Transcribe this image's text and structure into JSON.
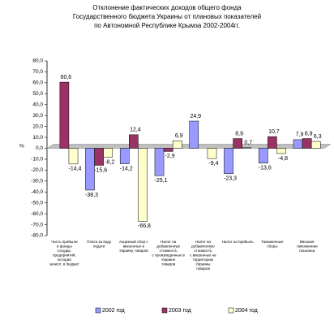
{
  "chart_data": {
    "type": "bar",
    "title": [
      "Отклонение фактических доходов общего фонда",
      "Государственного бюджета Украины от плановых показателей",
      "по Автономной Республике Крымза 2002-2004гг."
    ],
    "y_label": "%",
    "categories": [
      [
        "Часть прибыли",
        "в фонды",
        "государ.",
        "предприятий,",
        "которая",
        "зачисл. в бюджет"
      ],
      [
        "Плата за воду",
        "подати"
      ],
      [
        "Акцизный сбор с",
        "ввезенных в",
        "Украину товаров"
      ],
      [
        "Налог на",
        "добавленную",
        "стоимость",
        "с произведенных в",
        "Украине",
        "товаров"
      ],
      [
        "Налог на",
        "добавленную",
        "стоимость",
        "с ввезенных на",
        "территорию",
        "Украины",
        "товаров"
      ],
      [
        "Налог на прибыль"
      ],
      [
        "Таможенные",
        "сборы"
      ],
      [
        "Ввозная",
        "таможенная",
        "пошлина"
      ]
    ],
    "series": [
      {
        "name": "2002 год",
        "color": "#9999ff",
        "values": [
          null,
          -38.3,
          -14.2,
          -25.1,
          24.9,
          -23.3,
          -13.6,
          7.9
        ],
        "value_labels": [
          null,
          "-38,3",
          "-14,2",
          "-25,1",
          "24,9",
          "-23,3",
          "-13,6",
          "7,9"
        ]
      },
      {
        "name": "2003 год",
        "color": "#993366",
        "values": [
          60.6,
          -15.6,
          12.4,
          -2.9,
          null,
          8.9,
          10.7,
          8.9
        ],
        "value_labels": [
          "60,6",
          "-15,6",
          "12,4",
          "-2,9",
          null,
          "8,9",
          "10,7",
          "8,9"
        ]
      },
      {
        "name": "2004 год",
        "color": "#ffffcc",
        "values": [
          -14.4,
          -8.2,
          -66.8,
          6.9,
          -9.4,
          0.7,
          -4.8,
          6.3
        ],
        "value_labels": [
          "-14,4",
          "-8,2",
          "-66,8",
          "6,9",
          "-9,4",
          "0,7",
          "-4,8",
          "6,3"
        ]
      }
    ],
    "ylim": [
      -80,
      80
    ],
    "yticks": [
      {
        "value": -80,
        "label": "-80,0"
      },
      {
        "value": -70,
        "label": "-70,0"
      },
      {
        "value": -60,
        "label": "-60,0"
      },
      {
        "value": -50,
        "label": "-50,0"
      },
      {
        "value": -40,
        "label": "-40,0"
      },
      {
        "value": -30,
        "label": "-30,0"
      },
      {
        "value": -20,
        "label": "-20,0"
      },
      {
        "value": -10,
        "label": "-10,0"
      },
      {
        "value": 0,
        "label": "0,0"
      },
      {
        "value": 10,
        "label": "10,0"
      },
      {
        "value": 20,
        "label": "20,0"
      },
      {
        "value": 30,
        "label": "30,0"
      },
      {
        "value": 40,
        "label": "40,0"
      },
      {
        "value": 50,
        "label": "50,0"
      },
      {
        "value": 60,
        "label": "60,0"
      },
      {
        "value": 70,
        "label": "70,0"
      },
      {
        "value": 80,
        "label": "80,0"
      }
    ],
    "grid": false,
    "legend": "bottom"
  }
}
